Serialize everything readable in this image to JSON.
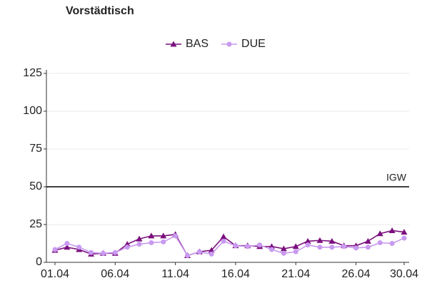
{
  "chart_data": {
    "type": "line",
    "title": "Vorstädtisch",
    "categories": [
      "01.04",
      null,
      null,
      null,
      null,
      "06.04",
      null,
      null,
      null,
      null,
      "11.04",
      null,
      null,
      null,
      null,
      "16.04",
      null,
      null,
      null,
      null,
      "21.04",
      null,
      null,
      null,
      null,
      "26.04",
      null,
      null,
      null,
      "30.04"
    ],
    "series": [
      {
        "name": "BAS",
        "color": "#7b0f7e",
        "marker": "triangle",
        "values": [
          8,
          10,
          8.5,
          5.5,
          6,
          6,
          12,
          15.5,
          17.5,
          17.5,
          18.5,
          4.5,
          7,
          8,
          17,
          11,
          11,
          10.5,
          10.5,
          9,
          10.5,
          14,
          14.5,
          14,
          11,
          11,
          14,
          19,
          21,
          20
        ]
      },
      {
        "name": "DUE",
        "color": "#c89af0",
        "marker": "circle",
        "values": [
          8.5,
          12.5,
          10,
          6.5,
          6,
          6.5,
          10,
          12,
          13,
          13.5,
          17.5,
          4.5,
          7,
          5.5,
          14,
          11,
          10.5,
          11.5,
          8.5,
          6,
          7,
          11.5,
          10,
          10,
          10.5,
          9.5,
          10,
          13,
          12.5,
          16
        ]
      }
    ],
    "reference_line": {
      "value": 50,
      "label": "IGW"
    },
    "ylim": [
      0,
      125
    ],
    "yticks": [
      0,
      25,
      50,
      75,
      100,
      125
    ],
    "grid": true,
    "legend": "top"
  }
}
